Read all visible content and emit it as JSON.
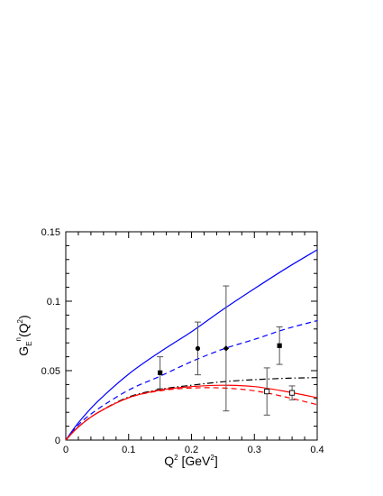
{
  "chart_data": {
    "type": "line",
    "title": "",
    "xlabel": {
      "main": "Q",
      "sup": "2",
      "rest": " [GeV",
      "sup2": "2",
      "close": "]"
    },
    "ylabel": {
      "main": "G",
      "sub": "E",
      "sup": "n",
      "rest": "(Q",
      "sup2": "2",
      "close": ")"
    },
    "xlim": [
      0,
      0.4
    ],
    "ylim": [
      0,
      0.15
    ],
    "xticks": [
      0,
      0.1,
      0.2,
      0.3,
      0.4
    ],
    "xtick_labels": [
      "0",
      "0.1",
      "0.2",
      "0.3",
      "0.4"
    ],
    "yticks": [
      0,
      0.05,
      0.1,
      0.15
    ],
    "ytick_labels": [
      "0",
      "0.05",
      "0.1",
      "0.15"
    ],
    "grid": false,
    "legend": "none",
    "series": [
      {
        "style": "solid",
        "color": "#0000ff",
        "x": [
          0,
          0.02,
          0.05,
          0.1,
          0.15,
          0.2,
          0.25,
          0.3,
          0.35,
          0.4
        ],
        "y": [
          0,
          0.0125,
          0.0275,
          0.0475,
          0.0635,
          0.078,
          0.094,
          0.109,
          0.1235,
          0.137
        ]
      },
      {
        "style": "dashed",
        "color": "#0000ff",
        "x": [
          0,
          0.02,
          0.05,
          0.1,
          0.15,
          0.2,
          0.25,
          0.3,
          0.35,
          0.4
        ],
        "y": [
          0,
          0.011,
          0.022,
          0.036,
          0.046,
          0.0565,
          0.0655,
          0.0725,
          0.08,
          0.086
        ]
      },
      {
        "style": "dashdot",
        "color": "#000000",
        "x": [
          0,
          0.02,
          0.05,
          0.1,
          0.15,
          0.2,
          0.25,
          0.3,
          0.35,
          0.4
        ],
        "y": [
          0,
          0.0095,
          0.0195,
          0.031,
          0.0365,
          0.0395,
          0.042,
          0.0435,
          0.0445,
          0.045
        ]
      },
      {
        "style": "solid",
        "color": "#ff0000",
        "x": [
          0,
          0.02,
          0.05,
          0.1,
          0.15,
          0.2,
          0.25,
          0.3,
          0.35,
          0.4
        ],
        "y": [
          0,
          0.0095,
          0.0195,
          0.0305,
          0.036,
          0.0385,
          0.0395,
          0.0385,
          0.035,
          0.0305
        ]
      },
      {
        "style": "dashed",
        "color": "#ff0000",
        "x": [
          0,
          0.02,
          0.05,
          0.1,
          0.15,
          0.2,
          0.25,
          0.3,
          0.35,
          0.4
        ],
        "y": [
          0,
          0.0095,
          0.0195,
          0.0305,
          0.0355,
          0.0375,
          0.0375,
          0.0355,
          0.031,
          0.0255
        ]
      }
    ],
    "points": [
      {
        "x": 0.15,
        "y": 0.0485,
        "err": 0.0115,
        "marker": "filled-square"
      },
      {
        "x": 0.21,
        "y": 0.066,
        "err": 0.019,
        "marker": "filled-circle"
      },
      {
        "x": 0.255,
        "y": 0.066,
        "err": 0.045,
        "marker": "filled-diamond"
      },
      {
        "x": 0.34,
        "y": 0.068,
        "err": 0.0135,
        "marker": "filled-square"
      },
      {
        "x": 0.32,
        "y": 0.035,
        "err": 0.017,
        "marker": "open-square"
      },
      {
        "x": 0.36,
        "y": 0.034,
        "err": 0.005,
        "marker": "open-square"
      }
    ]
  }
}
